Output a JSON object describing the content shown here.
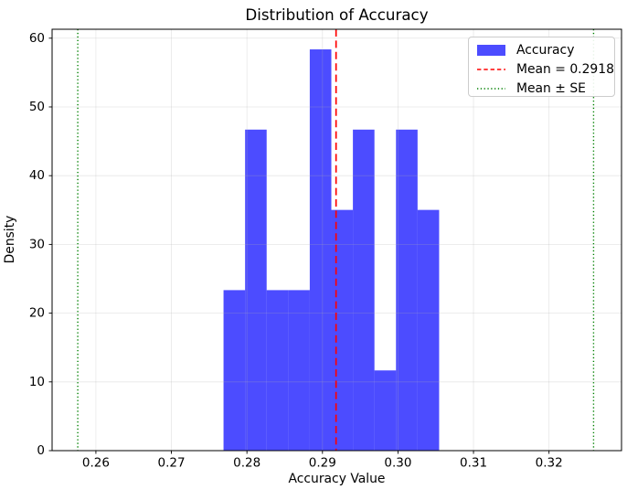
{
  "chart_data": {
    "type": "bar",
    "subtype": "histogram",
    "title": "Distribution of Accuracy",
    "xlabel": "Accuracy Value",
    "ylabel": "Density",
    "xlim": [
      0.2542,
      0.3296
    ],
    "ylim": [
      0,
      61.3
    ],
    "grid": true,
    "grid_color": "#b0b0b0",
    "grid_opacity": 0.3,
    "x_ticks": [
      {
        "value": 0.26,
        "label": "0.26"
      },
      {
        "value": 0.27,
        "label": "0.27"
      },
      {
        "value": 0.28,
        "label": "0.28"
      },
      {
        "value": 0.29,
        "label": "0.29"
      },
      {
        "value": 0.3,
        "label": "0.30"
      },
      {
        "value": 0.31,
        "label": "0.31"
      },
      {
        "value": 0.32,
        "label": "0.32"
      }
    ],
    "y_ticks": [
      {
        "value": 0,
        "label": "0"
      },
      {
        "value": 10,
        "label": "10"
      },
      {
        "value": 20,
        "label": "20"
      },
      {
        "value": 30,
        "label": "30"
      },
      {
        "value": 40,
        "label": "40"
      },
      {
        "value": 50,
        "label": "50"
      },
      {
        "value": 60,
        "label": "60"
      }
    ],
    "histogram": {
      "bin_start": 0.2769,
      "bin_width": 0.002855,
      "densities": [
        23.35,
        46.7,
        23.35,
        23.35,
        58.37,
        35.02,
        46.7,
        11.67,
        46.7,
        35.02
      ],
      "color": "#0000ff",
      "opacity": 0.7
    },
    "mean_line": {
      "value": 0.2918,
      "color": "#ff0000",
      "linestyle": "dashed"
    },
    "se_lines": {
      "lower": 0.2576,
      "upper": 0.3259,
      "color": "#008000",
      "linestyle": "dotted"
    },
    "legend": {
      "position": "upper right",
      "entries": [
        {
          "label": "Accuracy",
          "type": "patch",
          "color": "#0000ff",
          "opacity": 0.7
        },
        {
          "label": "Mean = 0.2918",
          "type": "dashed-line",
          "color": "#ff0000"
        },
        {
          "label": "Mean ± SE",
          "type": "dotted-line",
          "color": "#008000"
        }
      ]
    }
  }
}
